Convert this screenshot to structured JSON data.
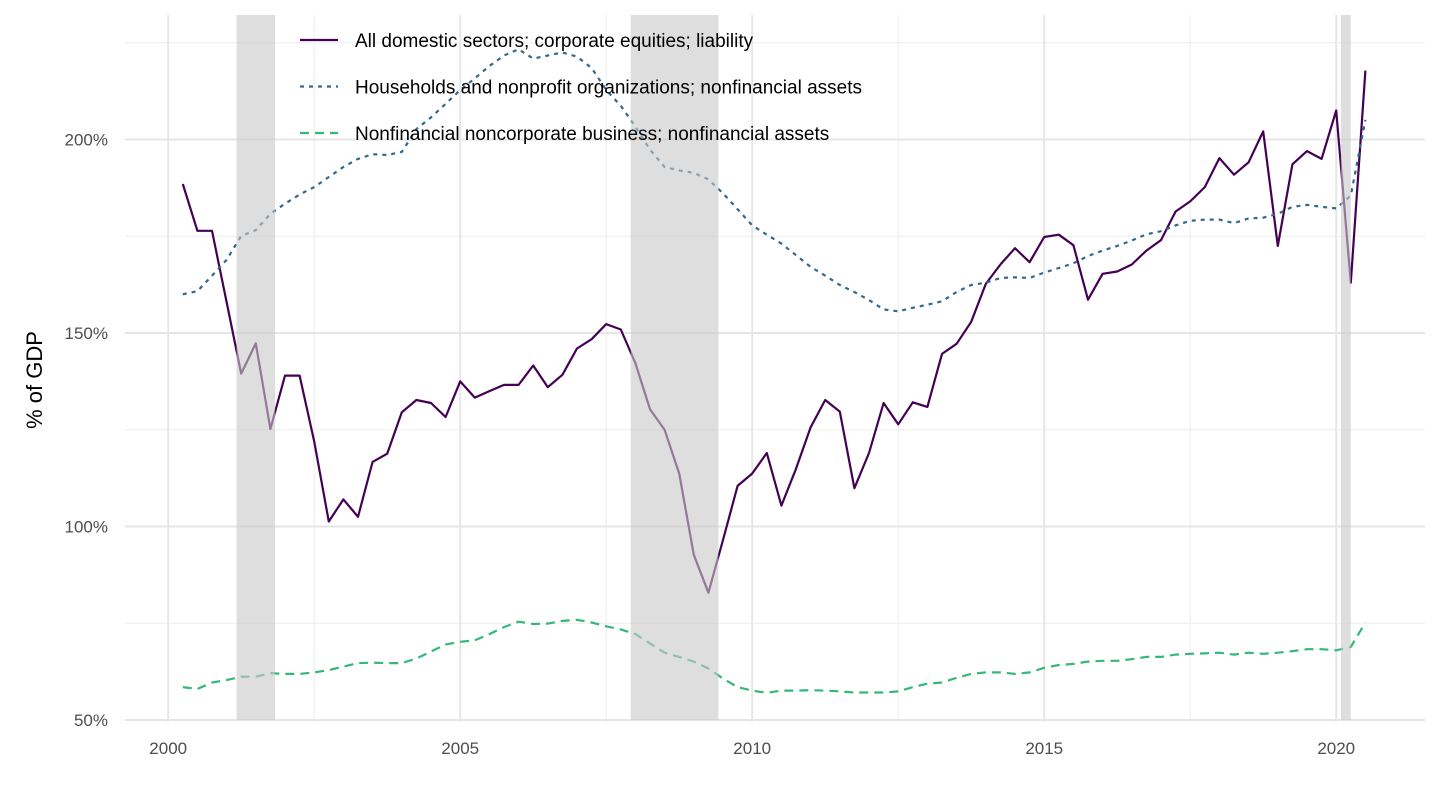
{
  "chart_data": {
    "type": "line",
    "title": "",
    "xlabel": "",
    "ylabel": "% of GDP",
    "xlim": [
      1999.26,
      2021.52
    ],
    "ylim": [
      50,
      226
    ],
    "x_start": 2000.25,
    "x_step": 0.25,
    "x_ticks": [
      2000,
      2005,
      2010,
      2015,
      2020
    ],
    "x_tick_labels": [
      "2000",
      "2005",
      "2010",
      "2015",
      "2020"
    ],
    "y_ticks": [
      50,
      100,
      150,
      200
    ],
    "y_tick_labels": [
      "50%",
      "100%",
      "150%",
      "200%"
    ],
    "grid": true,
    "legend_position": "top-left inside",
    "recessions": [
      [
        2001.17,
        2001.83
      ],
      [
        2007.92,
        2009.42
      ],
      [
        2020.08,
        2020.25
      ]
    ],
    "series": [
      {
        "name": "All domestic sectors; corporate equities; liability",
        "color": "#440154",
        "dash": "solid",
        "values": [
          188.5,
          176.4,
          176.4,
          158,
          139.5,
          147.3,
          125.2,
          139,
          139,
          122,
          101.3,
          107,
          102.5,
          116.7,
          118.8,
          129.5,
          132.7,
          131.9,
          128.3,
          137.5,
          133.3,
          135,
          136.6,
          136.6,
          141.6,
          136,
          139.2,
          146,
          148.4,
          152.3,
          150.9,
          142.2,
          130.3,
          125,
          113.7,
          92.7,
          82.9,
          96.5,
          110.5,
          113.7,
          119,
          105.4,
          114.9,
          125.6,
          132.7,
          129.7,
          109.9,
          119,
          131.9,
          126.4,
          132.1,
          130.9,
          144.6,
          147.2,
          152.9,
          162.7,
          167.7,
          171.9,
          168.3,
          174.8,
          175.4,
          172.7,
          158.6,
          165.3,
          165.9,
          167.7,
          171.3,
          174,
          181.4,
          184,
          187.7,
          195.2,
          190.9,
          194.1,
          202.1,
          172.5,
          193.6,
          197,
          195,
          207.5,
          163,
          217.8
        ]
      },
      {
        "name": "Households and nonprofit organizations; nonfinancial assets",
        "color": "#31688e",
        "dash": "dotted",
        "values": [
          160,
          160.8,
          164.8,
          168.9,
          175.1,
          176.6,
          180.8,
          183.4,
          185.8,
          187.7,
          190.3,
          192.9,
          195,
          196.2,
          196,
          196.8,
          202.7,
          205.7,
          209.2,
          212.8,
          215.8,
          219,
          221.7,
          223.3,
          220.9,
          221.7,
          222.5,
          221.4,
          218.5,
          212.8,
          208.7,
          203.3,
          197.4,
          192.9,
          192,
          191.4,
          189.7,
          186.1,
          182,
          177.8,
          175.4,
          173.1,
          170.1,
          167.1,
          164.8,
          162.4,
          160.6,
          158.5,
          156.1,
          155.6,
          156.5,
          157.3,
          158.2,
          160.6,
          162.4,
          163,
          164.2,
          164.4,
          164.2,
          165.6,
          166.8,
          168,
          169.9,
          171.3,
          172.5,
          173.9,
          175.5,
          176.3,
          177.8,
          179,
          179.3,
          179.3,
          178.4,
          179.6,
          179.8,
          180.8,
          182.6,
          183.1,
          182.6,
          182.2,
          185.5,
          205.1
        ]
      },
      {
        "name": "Nonfinancial noncorporate business; nonfinancial assets",
        "color": "#35b779",
        "dash": "dashed",
        "values": [
          58.5,
          58,
          59.7,
          60.3,
          61.2,
          61.2,
          62.1,
          61.9,
          61.9,
          62.3,
          62.9,
          63.8,
          64.7,
          64.8,
          64.7,
          64.7,
          65.9,
          67.7,
          69.5,
          70.2,
          70.6,
          72.2,
          74,
          75.4,
          74.8,
          74.9,
          75.6,
          75.9,
          75.2,
          74.2,
          73.4,
          72.2,
          69.8,
          67.4,
          66.3,
          65.1,
          63.3,
          60.7,
          58.5,
          57.6,
          57,
          57.6,
          57.6,
          57.7,
          57.6,
          57.4,
          57.1,
          57.1,
          57.1,
          57.4,
          58.5,
          59.4,
          59.7,
          60.9,
          61.9,
          62.3,
          62.3,
          61.9,
          62.3,
          63.5,
          64.2,
          64.5,
          65.1,
          65.3,
          65.3,
          65.7,
          66.3,
          66.3,
          66.9,
          67.1,
          67.2,
          67.4,
          66.9,
          67.4,
          67.1,
          67.4,
          67.8,
          68.3,
          68.3,
          68,
          68.9,
          75.2
        ]
      }
    ]
  }
}
